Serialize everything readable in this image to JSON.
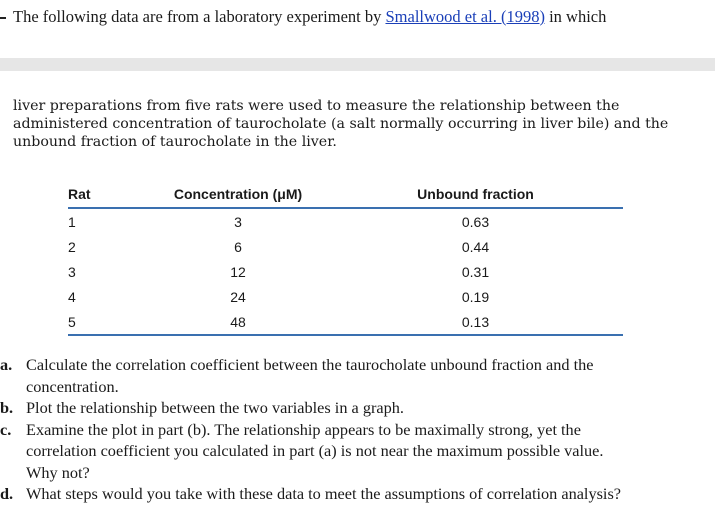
{
  "intro": {
    "before_link": "The following data are from a laboratory experiment by ",
    "link_text": "Smallwood et al. (1998)",
    "after_link": " in which"
  },
  "paragraph": {
    "lines": [
      "liver preparations from five rats were used to measure the relationship between the",
      "administered concentration of taurocholate (a salt normally occurring in liver bile) and the",
      "unbound fraction of taurocholate in the liver."
    ]
  },
  "table": {
    "headers": [
      "Rat",
      "Concentration (μM)",
      "Unbound fraction"
    ],
    "rows": [
      [
        "1",
        "3",
        "0.63"
      ],
      [
        "2",
        "6",
        "0.44"
      ],
      [
        "3",
        "12",
        "0.31"
      ],
      [
        "4",
        "24",
        "0.19"
      ],
      [
        "5",
        "48",
        "0.13"
      ]
    ],
    "rule_color": "#3a70b0"
  },
  "questions": [
    {
      "label": "a.",
      "lines": [
        "Calculate the correlation coefficient between the taurocholate unbound fraction and the",
        "concentration."
      ]
    },
    {
      "label": "b.",
      "lines": [
        "Plot the relationship between the two variables in a graph."
      ]
    },
    {
      "label": "c.",
      "lines": [
        "Examine the plot in part (b). The relationship appears to be maximally strong, yet the",
        "correlation coefficient you calculated in part (a) is not near the maximum possible value.",
        "Why not?"
      ]
    },
    {
      "label": "d.",
      "lines": [
        "What steps would you take with these data to meet the assumptions of correlation analysis?"
      ]
    }
  ]
}
